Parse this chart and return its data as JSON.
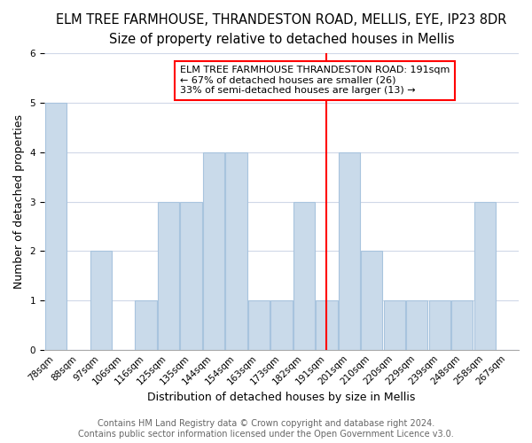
{
  "title": "ELM TREE FARMHOUSE, THRANDESTON ROAD, MELLIS, EYE, IP23 8DR",
  "subtitle": "Size of property relative to detached houses in Mellis",
  "xlabel": "Distribution of detached houses by size in Mellis",
  "ylabel": "Number of detached properties",
  "bin_labels": [
    "78sqm",
    "88sqm",
    "97sqm",
    "106sqm",
    "116sqm",
    "125sqm",
    "135sqm",
    "144sqm",
    "154sqm",
    "163sqm",
    "173sqm",
    "182sqm",
    "191sqm",
    "201sqm",
    "210sqm",
    "220sqm",
    "229sqm",
    "239sqm",
    "248sqm",
    "258sqm",
    "267sqm"
  ],
  "bar_heights": [
    5,
    0,
    2,
    0,
    1,
    3,
    3,
    4,
    4,
    1,
    1,
    3,
    1,
    4,
    2,
    1,
    1,
    1,
    1,
    3,
    0
  ],
  "bar_color": "#c9daea",
  "bar_edge_color": "#a8c4de",
  "reference_line_label": "191sqm",
  "annotation_title": "ELM TREE FARMHOUSE THRANDESTON ROAD: 191sqm",
  "annotation_line1": "← 67% of detached houses are smaller (26)",
  "annotation_line2": "33% of semi-detached houses are larger (13) →",
  "annotation_box_edgecolor": "red",
  "reference_line_color": "red",
  "footer_line1": "Contains HM Land Registry data © Crown copyright and database right 2024.",
  "footer_line2": "Contains public sector information licensed under the Open Government Licence v3.0.",
  "ylim": [
    0,
    6
  ],
  "yticks": [
    0,
    1,
    2,
    3,
    4,
    5,
    6
  ],
  "title_fontsize": 10.5,
  "subtitle_fontsize": 9.5,
  "axis_label_fontsize": 9,
  "tick_fontsize": 7.5,
  "annotation_fontsize": 8,
  "footer_fontsize": 7,
  "background_color": "#ffffff",
  "grid_color": "#d0d8e8"
}
